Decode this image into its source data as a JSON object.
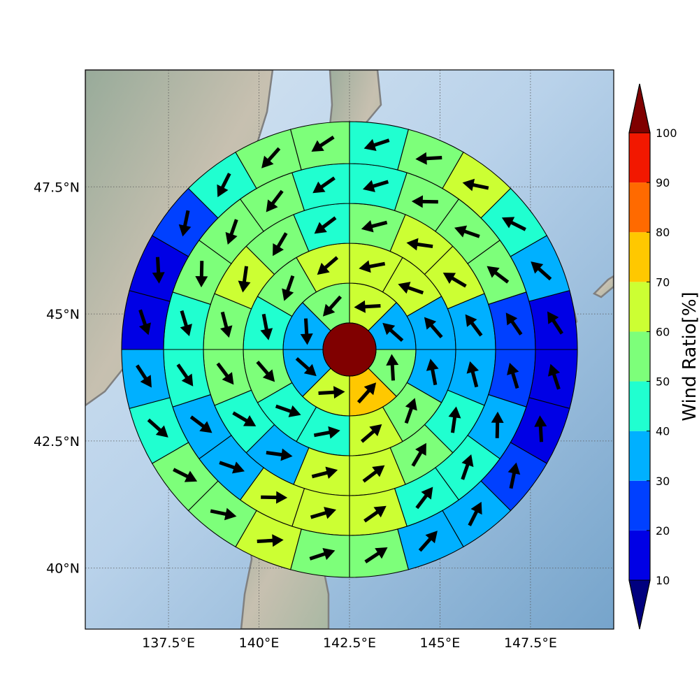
{
  "map": {
    "lon_range": [
      135.2,
      149.8
    ],
    "lat_range": [
      38.8,
      49.8
    ],
    "lon_ticks": [
      {
        "value": 137.5,
        "label": "137.5°E"
      },
      {
        "value": 140.0,
        "label": "140°E"
      },
      {
        "value": 142.5,
        "label": "142.5°E"
      },
      {
        "value": 145.0,
        "label": "145°E"
      },
      {
        "value": 147.5,
        "label": "147.5°E"
      }
    ],
    "lat_ticks": [
      {
        "value": 40.0,
        "label": "40°N"
      },
      {
        "value": 42.5,
        "label": "42.5°N"
      },
      {
        "value": 45.0,
        "label": "45°N"
      },
      {
        "value": 47.5,
        "label": "47.5°N"
      }
    ],
    "center": {
      "lon": 142.5,
      "lat": 44.3
    },
    "center_fill": "#800000",
    "coast_color": "#808080",
    "sea_color": "#9fbfdc",
    "land_color": "#b9c2b2"
  },
  "colorbar": {
    "label": "Wind Ratio[%]",
    "ticks": [
      "10",
      "20",
      "30",
      "40",
      "50",
      "60",
      "70",
      "80",
      "90",
      "100"
    ],
    "levels": [
      10,
      20,
      30,
      40,
      50,
      60,
      70,
      80,
      90,
      100
    ],
    "colors": [
      "#0000e5",
      "#0040ff",
      "#00b0ff",
      "#20ffd0",
      "#7dff7a",
      "#ccff33",
      "#ffc800",
      "#ff6a00",
      "#f21800"
    ],
    "under_color": "#00007f",
    "over_color": "#800000"
  },
  "rings": {
    "sectors_per_ring": [
      8,
      12,
      16,
      20,
      24
    ],
    "values": [
      [
        60,
        30,
        55,
        70,
        60,
        35,
        35,
        55
      ],
      [
        60,
        60,
        35,
        30,
        55,
        65,
        45,
        45,
        50,
        45,
        55,
        65
      ],
      [
        55,
        60,
        65,
        30,
        30,
        45,
        55,
        60,
        65,
        35,
        45,
        50,
        55,
        60,
        55,
        45
      ],
      [
        45,
        50,
        55,
        50,
        25,
        25,
        35,
        40,
        40,
        65,
        60,
        60,
        30,
        35,
        40,
        45,
        55,
        50,
        55,
        45
      ],
      [
        45,
        50,
        60,
        45,
        35,
        10,
        10,
        15,
        20,
        30,
        35,
        50,
        55,
        65,
        50,
        50,
        45,
        35,
        15,
        10,
        20,
        45,
        50,
        50
      ]
    ]
  }
}
